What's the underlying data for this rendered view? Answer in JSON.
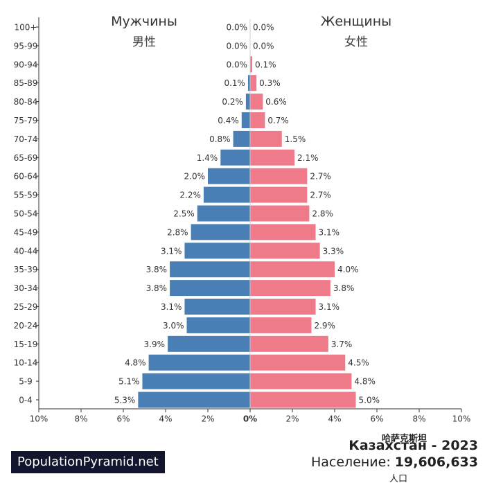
{
  "headers": {
    "male_ru": "Мужчины",
    "male_zh": "男性",
    "female_ru": "Женщины",
    "female_zh": "女性"
  },
  "footer": {
    "site": "PopulationPyramid.net",
    "country_zh": "哈萨克斯坦",
    "country_line": "Казахстан - 2023",
    "population_label": "Население:",
    "population_value": "19,606,633",
    "population_zh": "人口"
  },
  "colors": {
    "male": "#4a7fb5",
    "female": "#ee7a8a",
    "axis": "#333333"
  },
  "chart_data": {
    "type": "bar",
    "orientation": "horizontal-pyramid",
    "categories": [
      "0-4",
      "5-9",
      "10-14",
      "15-19",
      "20-24",
      "25-29",
      "30-34",
      "35-39",
      "40-44",
      "45-49",
      "50-54",
      "55-59",
      "60-64",
      "65-69",
      "70-74",
      "75-79",
      "80-84",
      "85-89",
      "90-94",
      "95-99",
      "100+"
    ],
    "series": [
      {
        "name": "Мужчины",
        "values": [
          5.3,
          5.1,
          4.8,
          3.9,
          3.0,
          3.1,
          3.8,
          3.8,
          3.1,
          2.8,
          2.5,
          2.2,
          2.0,
          1.4,
          0.8,
          0.4,
          0.2,
          0.1,
          0.0,
          0.0,
          0.0
        ]
      },
      {
        "name": "Женщины",
        "values": [
          5.0,
          4.8,
          4.5,
          3.7,
          2.9,
          3.1,
          3.8,
          4.0,
          3.3,
          3.1,
          2.8,
          2.7,
          2.7,
          2.1,
          1.5,
          0.7,
          0.6,
          0.3,
          0.1,
          0.0,
          0.0
        ]
      }
    ],
    "value_labels": {
      "male": [
        "5.3%",
        "5.1%",
        "4.8%",
        "3.9%",
        "3.0%",
        "3.1%",
        "3.8%",
        "3.8%",
        "3.1%",
        "2.8%",
        "2.5%",
        "2.2%",
        "2.0%",
        "1.4%",
        "0.8%",
        "0.4%",
        "0.2%",
        "0.1%",
        "0.0%",
        "0.0%",
        "0.0%"
      ],
      "female": [
        "5.0%",
        "4.8%",
        "4.5%",
        "3.7%",
        "2.9%",
        "3.1%",
        "3.8%",
        "4.0%",
        "3.3%",
        "3.1%",
        "2.8%",
        "2.7%",
        "2.7%",
        "2.1%",
        "1.5%",
        "0.7%",
        "0.6%",
        "0.3%",
        "0.1%",
        "0.0%",
        "0.0%"
      ]
    },
    "x_ticks": [
      "10%",
      "8%",
      "6%",
      "4%",
      "2%",
      "0%",
      "2%",
      "4%",
      "6%",
      "8%",
      "10%"
    ],
    "xlim": [
      -10,
      10
    ],
    "grid": false
  }
}
